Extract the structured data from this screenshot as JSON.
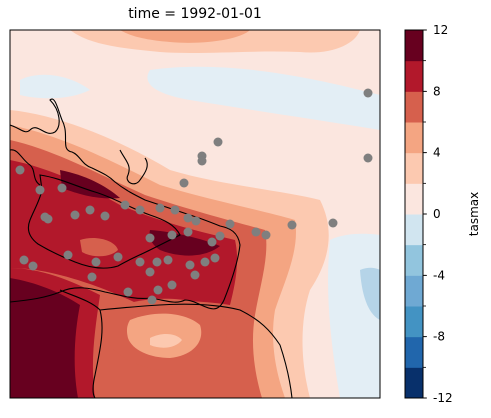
{
  "chart_data": {
    "type": "heatmap",
    "title": "time = 1992-01-01",
    "colorbar": {
      "label": "tasmax",
      "levels": [
        -12,
        -10,
        -8,
        -6,
        -4,
        -2,
        0,
        2,
        4,
        6,
        8,
        10,
        12
      ],
      "tick_labels": [
        "-12",
        "-8",
        "-4",
        "0",
        "4",
        "8",
        "12"
      ],
      "tick_values": [
        -12,
        -8,
        -4,
        0,
        4,
        8,
        12
      ],
      "colors": [
        "#08306b",
        "#2166ac",
        "#4393c3",
        "#6fa9d3",
        "#92c5de",
        "#d1e5f0",
        "#fbe6df",
        "#fcc9b0",
        "#f4a582",
        "#d6604d",
        "#b2182b",
        "#67001f"
      ]
    },
    "stations": 48,
    "grid_description": "filled contour map of tasmax with station markers and coastline overlay"
  }
}
